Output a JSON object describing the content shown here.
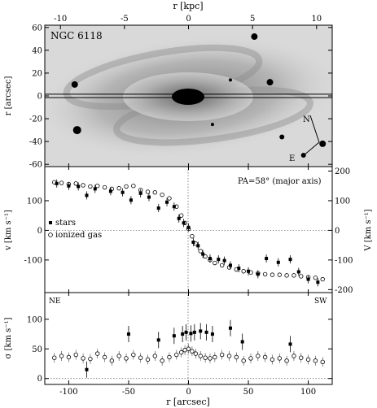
{
  "figure": {
    "galaxy_label": "NGC 6118",
    "pa_label": "PA=58° (major axis)",
    "ne_label": "NE",
    "sw_label": "SW",
    "north_label": "N",
    "east_label": "E",
    "legend_stars": "stars",
    "legend_gas": "ionized gas",
    "top_axis_label": "r [kpc]",
    "bottom_axis_label": "r [arcsec]",
    "image_ylabel": "r [arcsec]",
    "vel_ylabel_left": "v [km s⁻¹]",
    "vel_ylabel_right": "V [km s⁻¹]",
    "sig_ylabel": "σ [km s⁻¹]"
  },
  "chart_data": [
    {
      "type": "image",
      "panel": "image",
      "xlim": [
        -120,
        120
      ],
      "ylim": [
        -62,
        62
      ],
      "top_kpc_ticks": [
        -10,
        -5,
        0,
        5,
        10
      ],
      "top_kpc_per_arcsec": 0.0935,
      "yticks": [
        -60,
        -40,
        -20,
        0,
        20,
        40,
        60
      ],
      "slit_halfwidth_arcsec": 1.5,
      "stars_field": [
        {
          "x": -95,
          "y": 10,
          "r": 4
        },
        {
          "x": -93,
          "y": -30,
          "r": 5
        },
        {
          "x": 55,
          "y": 52,
          "r": 4
        },
        {
          "x": 68,
          "y": 12,
          "r": 4
        },
        {
          "x": 20,
          "y": -25,
          "r": 2
        },
        {
          "x": 78,
          "y": -36,
          "r": 3
        },
        {
          "x": 112,
          "y": -42,
          "r": 4
        },
        {
          "x": 96,
          "y": -52,
          "r": 3
        },
        {
          "x": 35,
          "y": 14,
          "r": 2
        }
      ]
    },
    {
      "type": "scatter",
      "panel": "velocity",
      "xlim": [
        -120,
        120
      ],
      "ylim": [
        -210,
        215
      ],
      "yticks_left": [
        -100,
        0,
        100
      ],
      "yticks_right": [
        -200,
        -100,
        0,
        100,
        200
      ],
      "series": [
        {
          "name": "stars",
          "x": [
            -110,
            -100,
            -92,
            -85,
            -78,
            -65,
            -55,
            -48,
            -40,
            -33,
            -25,
            -18,
            -12,
            -8,
            -4,
            0,
            4,
            8,
            12,
            18,
            25,
            30,
            35,
            42,
            50,
            58,
            65,
            75,
            85,
            92,
            100,
            108
          ],
          "y": [
            158,
            150,
            148,
            118,
            140,
            132,
            128,
            102,
            125,
            112,
            75,
            95,
            80,
            40,
            25,
            10,
            -40,
            -52,
            -80,
            -95,
            -98,
            -102,
            -118,
            -128,
            -138,
            -148,
            -95,
            -108,
            -98,
            -140,
            -165,
            -175
          ]
        },
        {
          "name": "ionized gas",
          "x": [
            -112,
            -106,
            -100,
            -94,
            -88,
            -82,
            -76,
            -70,
            -64,
            -58,
            -52,
            -46,
            -40,
            -34,
            -28,
            -22,
            -16,
            -10,
            -6,
            -3,
            0,
            3,
            6,
            10,
            14,
            18,
            22,
            28,
            34,
            40,
            46,
            52,
            58,
            64,
            70,
            76,
            82,
            88,
            94,
            100,
            106,
            112
          ],
          "y": [
            162,
            160,
            156,
            158,
            152,
            148,
            150,
            145,
            140,
            142,
            148,
            150,
            136,
            130,
            128,
            120,
            108,
            80,
            50,
            25,
            5,
            -20,
            -45,
            -70,
            -88,
            -100,
            -110,
            -118,
            -125,
            -132,
            -138,
            -142,
            -145,
            -148,
            -150,
            -150,
            -152,
            -152,
            -155,
            -158,
            -160,
            -165
          ]
        }
      ]
    },
    {
      "type": "scatter",
      "panel": "dispersion",
      "xlim": [
        -120,
        120
      ],
      "ylim": [
        -10,
        145
      ],
      "yticks": [
        0,
        50,
        100
      ],
      "series": [
        {
          "name": "stars",
          "x": [
            -85,
            -50,
            -25,
            -12,
            -5,
            -2,
            2,
            5,
            10,
            15,
            20,
            35,
            45,
            85
          ],
          "y": [
            15,
            75,
            65,
            72,
            75,
            78,
            76,
            78,
            80,
            78,
            75,
            85,
            62,
            58
          ]
        },
        {
          "name": "ionized gas",
          "x": [
            -112,
            -106,
            -100,
            -94,
            -88,
            -82,
            -76,
            -70,
            -64,
            -58,
            -52,
            -46,
            -40,
            -34,
            -28,
            -22,
            -16,
            -10,
            -6,
            -3,
            0,
            3,
            6,
            10,
            14,
            18,
            22,
            28,
            34,
            40,
            46,
            52,
            58,
            64,
            70,
            76,
            82,
            88,
            94,
            100,
            106,
            112
          ],
          "y": [
            35,
            38,
            36,
            40,
            34,
            33,
            42,
            36,
            30,
            38,
            34,
            40,
            35,
            32,
            38,
            30,
            36,
            40,
            44,
            48,
            50,
            46,
            42,
            38,
            35,
            34,
            36,
            40,
            38,
            36,
            30,
            34,
            38,
            36,
            32,
            34,
            30,
            38,
            35,
            32,
            30,
            28
          ]
        }
      ]
    }
  ]
}
